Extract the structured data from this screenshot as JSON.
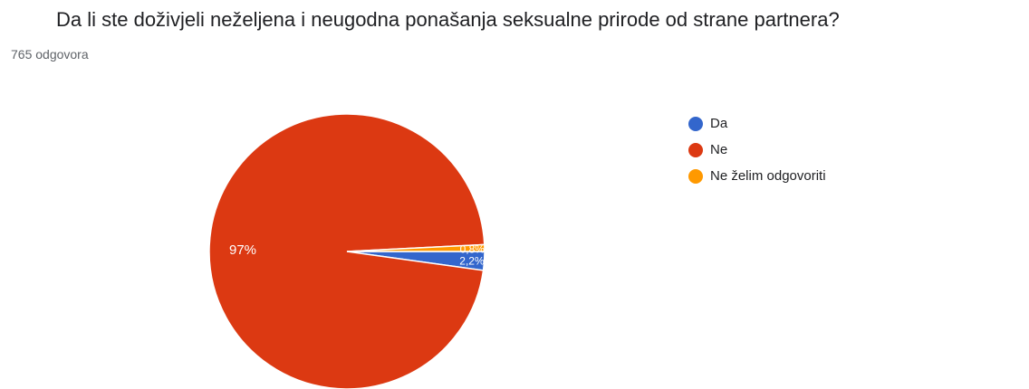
{
  "chart_data": {
    "type": "pie",
    "title": "Da li ste doživjeli neželjena i neugodna ponašanja seksualne prirode od strane partnera?",
    "subtitle": "765 odgovora",
    "slices": [
      {
        "label": "Da",
        "value": 2.2,
        "display": "2,2%",
        "color": "#3366cc"
      },
      {
        "label": "Ne",
        "value": 97,
        "display": "97%",
        "color": "#dc3912"
      },
      {
        "label": "Ne želim odgovoriti",
        "value": 0.8,
        "display": "0,8%",
        "color": "#ff9900"
      }
    ],
    "legend_position": "right"
  }
}
